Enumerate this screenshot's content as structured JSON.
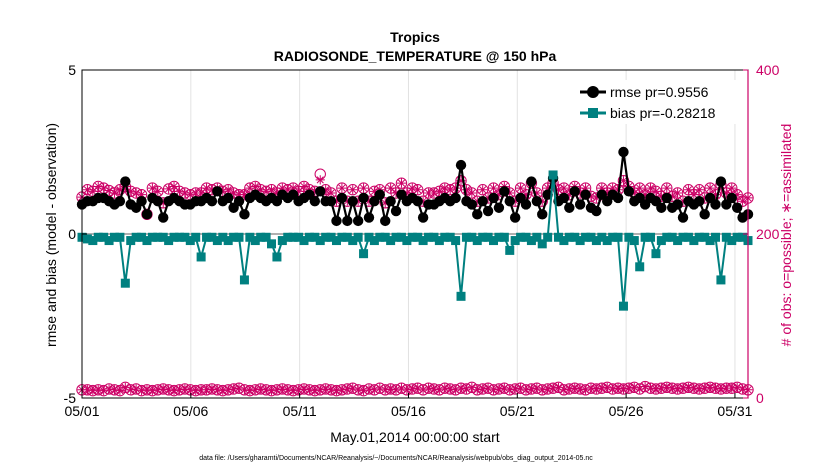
{
  "chart_data": {
    "type": "line",
    "title": "Tropics",
    "subtitle": "RADIOSONDE_TEMPERATURE @ 150 hPa",
    "xlabel": "May.01,2014 00:00:00 start",
    "ylabel": "rmse and bias (model - observation)",
    "ylabel_right": "# of obs: o=possible; ∗=assimilated",
    "footnote": "data file: /Users/gharamti/Documents/NCAR/Reanalysis/~/Documents/NCAR/Reanalysis/webpub/obs_diag_output_2014-05.nc",
    "xlim": [
      1,
      31.6
    ],
    "ylim": [
      -5,
      5
    ],
    "ylim_right": [
      0,
      400
    ],
    "xticks": [
      1,
      6,
      11,
      16,
      21,
      26,
      31
    ],
    "xtick_labels": [
      "05/01",
      "05/06",
      "05/11",
      "05/16",
      "05/21",
      "05/26",
      "05/31"
    ],
    "yticks": [
      -5,
      0,
      5
    ],
    "ytick_labels": [
      "-5",
      "0",
      "5"
    ],
    "yticks_right": [
      0,
      200,
      400
    ],
    "ytick_labels_right": [
      "0",
      "200",
      "400"
    ],
    "grid": true,
    "legend_position": "top-right",
    "colors": {
      "rmse": "#000000",
      "bias": "#008080",
      "obs": "#cc0066",
      "zero_line": "#b0b0b0"
    },
    "series": [
      {
        "name": "rmse pr=0.9556",
        "marker": "circle",
        "values": [
          0.9,
          1.0,
          1.0,
          1.1,
          1.1,
          1.0,
          0.9,
          1.0,
          1.6,
          0.9,
          0.8,
          1.0,
          0.6,
          1.1,
          1.0,
          0.5,
          1.0,
          1.1,
          1.0,
          0.9,
          0.9,
          1.0,
          1.0,
          1.1,
          1.0,
          1.3,
          1.0,
          1.1,
          0.8,
          1.0,
          0.6,
          1.1,
          1.2,
          1.1,
          1.0,
          1.1,
          1.0,
          1.2,
          1.1,
          1.2,
          1.0,
          1.1,
          1.2,
          1.0,
          1.3,
          1.0,
          1.0,
          0.4,
          1.1,
          0.4,
          1.0,
          0.4,
          1.1,
          0.5,
          1.0,
          1.2,
          0.4,
          1.0,
          0.7,
          1.2,
          1.0,
          1.1,
          1.0,
          0.5,
          0.9,
          0.9,
          1.0,
          1.1,
          1.0,
          1.1,
          2.1,
          1.0,
          0.9,
          0.6,
          1.0,
          0.7,
          1.1,
          0.8,
          1.3,
          1.0,
          0.5,
          1.1,
          0.9,
          1.6,
          1.0,
          0.6,
          1.2,
          1.7,
          1.0,
          1.1,
          0.8,
          1.3,
          0.9,
          1.2,
          0.8,
          0.7,
          1.2,
          1.0,
          1.2,
          1.1,
          2.5,
          1.3,
          1.0,
          1.1,
          0.9,
          1.1,
          1.0,
          0.8,
          1.1,
          0.8,
          0.9,
          0.5,
          1.0,
          0.9,
          1.0,
          0.6,
          1.1,
          0.9,
          1.6,
          0.9,
          1.1,
          0.8,
          0.5,
          0.6
        ],
        "obs_possible": [
          245,
          254,
          252,
          258,
          256,
          253,
          250,
          254,
          258,
          252,
          250,
          248,
          224,
          256,
          252,
          238,
          255,
          258,
          252,
          250,
          248,
          250,
          250,
          256,
          254,
          256,
          252,
          254,
          250,
          248,
          248,
          256,
          258,
          254,
          252,
          254,
          250,
          256,
          254,
          256,
          252,
          258,
          254,
          252,
          273,
          254,
          250,
          240,
          256,
          240,
          254,
          240,
          256,
          240,
          252,
          254,
          238,
          256,
          250,
          262,
          250,
          256,
          254,
          240,
          250,
          250,
          252,
          256,
          254,
          256,
          265,
          254,
          250,
          240,
          254,
          244,
          256,
          248,
          258,
          250,
          240,
          256,
          248,
          262,
          250,
          240,
          256,
          262,
          254,
          256,
          248,
          258,
          250,
          256,
          246,
          244,
          256,
          250,
          256,
          254,
          265,
          258,
          250,
          256,
          248,
          256,
          252,
          246,
          256,
          246,
          250,
          240,
          254,
          248,
          254,
          244,
          256,
          248,
          260,
          250,
          256,
          248,
          240,
          244
        ],
        "obs_assimilated": [
          245,
          254,
          252,
          258,
          256,
          253,
          250,
          254,
          258,
          252,
          250,
          248,
          224,
          256,
          252,
          238,
          255,
          258,
          252,
          250,
          248,
          250,
          250,
          256,
          254,
          256,
          252,
          254,
          250,
          248,
          248,
          256,
          258,
          254,
          252,
          254,
          250,
          256,
          254,
          256,
          252,
          258,
          254,
          252,
          266,
          254,
          250,
          240,
          256,
          240,
          254,
          240,
          256,
          240,
          252,
          254,
          238,
          256,
          250,
          262,
          250,
          256,
          254,
          240,
          250,
          250,
          252,
          256,
          254,
          256,
          265,
          254,
          250,
          240,
          254,
          244,
          256,
          248,
          258,
          250,
          240,
          256,
          248,
          262,
          250,
          240,
          256,
          262,
          254,
          256,
          248,
          258,
          250,
          256,
          246,
          244,
          256,
          250,
          256,
          254,
          265,
          258,
          250,
          256,
          248,
          256,
          252,
          246,
          256,
          246,
          250,
          240,
          254,
          248,
          254,
          244,
          256,
          248,
          260,
          250,
          256,
          248,
          240,
          244
        ]
      },
      {
        "name": "bias pr=-0.28218",
        "marker": "square",
        "values": [
          -0.1,
          -0.15,
          -0.2,
          -0.1,
          -0.1,
          -0.2,
          -0.1,
          -0.1,
          -1.5,
          -0.2,
          -0.1,
          -0.1,
          -0.2,
          -0.1,
          -0.1,
          -0.1,
          -0.2,
          -0.1,
          -0.1,
          -0.1,
          -0.2,
          -0.1,
          -0.7,
          -0.1,
          -0.1,
          -0.2,
          -0.1,
          -0.2,
          -0.1,
          -0.1,
          -1.4,
          -0.1,
          -0.2,
          -0.1,
          -0.1,
          -0.3,
          -0.7,
          -0.2,
          -0.1,
          -0.1,
          -0.1,
          -0.2,
          -0.1,
          -0.1,
          -0.2,
          -0.1,
          -0.1,
          -0.2,
          -0.1,
          -0.1,
          -0.2,
          -0.1,
          -0.6,
          -0.1,
          -0.2,
          -0.1,
          -0.1,
          -0.2,
          -0.1,
          -0.1,
          -0.2,
          -0.1,
          -0.1,
          -0.2,
          -0.1,
          -0.1,
          -0.2,
          -0.1,
          -0.1,
          -0.2,
          -1.9,
          -0.1,
          -0.1,
          -0.2,
          -0.1,
          -0.1,
          -0.2,
          -0.1,
          -0.1,
          -0.5,
          -0.2,
          -0.1,
          -0.1,
          -0.2,
          -0.1,
          -0.3,
          -0.1,
          1.8,
          -0.1,
          -0.2,
          -0.1,
          -0.1,
          -0.2,
          -0.1,
          -0.1,
          -0.2,
          -0.1,
          -0.2,
          -0.1,
          -0.1,
          -2.2,
          -0.1,
          -0.2,
          -1.0,
          -0.1,
          -0.1,
          -0.6,
          -0.2,
          -0.1,
          -0.1,
          -0.2,
          -0.1,
          -0.1,
          -0.2,
          -0.1,
          -0.1,
          -0.2,
          -0.1,
          -1.4,
          -0.1,
          -0.2,
          -0.1,
          -0.1,
          -0.2
        ],
        "obs_possible": [
          10,
          10,
          9,
          10,
          9,
          11,
          10,
          9,
          13,
          10,
          11,
          9,
          10,
          9,
          10,
          11,
          10,
          9,
          10,
          11,
          10,
          9,
          10,
          10,
          11,
          10,
          9,
          10,
          11,
          12,
          10,
          9,
          10,
          11,
          10,
          9,
          10,
          11,
          10,
          9,
          10,
          11,
          10,
          9,
          10,
          11,
          10,
          9,
          10,
          11,
          12,
          10,
          9,
          11,
          10,
          12,
          10,
          11,
          10,
          12,
          10,
          11,
          12,
          10,
          12,
          11,
          10,
          12,
          11,
          10,
          12,
          11,
          13,
          10,
          11,
          12,
          10,
          11,
          12,
          10,
          11,
          12,
          10,
          11,
          12,
          10,
          11,
          12,
          13,
          10,
          11,
          12,
          11,
          10,
          12,
          11,
          12,
          13,
          11,
          12,
          11,
          12,
          13,
          11,
          14,
          12,
          11,
          12,
          13,
          12,
          11,
          12,
          13,
          12,
          11,
          12,
          13,
          12,
          11,
          12,
          12,
          13,
          11,
          10
        ],
        "obs_assimilated": [
          10,
          10,
          9,
          10,
          9,
          11,
          10,
          9,
          13,
          10,
          11,
          9,
          10,
          9,
          10,
          11,
          10,
          9,
          10,
          11,
          10,
          9,
          10,
          10,
          11,
          10,
          9,
          10,
          11,
          12,
          10,
          9,
          10,
          11,
          10,
          9,
          10,
          11,
          10,
          9,
          10,
          11,
          10,
          9,
          10,
          11,
          10,
          9,
          10,
          11,
          12,
          10,
          9,
          11,
          10,
          12,
          10,
          11,
          10,
          12,
          10,
          11,
          12,
          10,
          12,
          11,
          10,
          12,
          11,
          10,
          12,
          11,
          13,
          10,
          11,
          12,
          10,
          11,
          12,
          10,
          11,
          12,
          10,
          11,
          12,
          10,
          11,
          12,
          13,
          10,
          11,
          12,
          11,
          10,
          12,
          11,
          12,
          13,
          11,
          12,
          11,
          12,
          13,
          11,
          14,
          12,
          11,
          12,
          13,
          12,
          11,
          12,
          13,
          12,
          11,
          12,
          13,
          12,
          11,
          12,
          12,
          13,
          11,
          10
        ]
      }
    ]
  }
}
